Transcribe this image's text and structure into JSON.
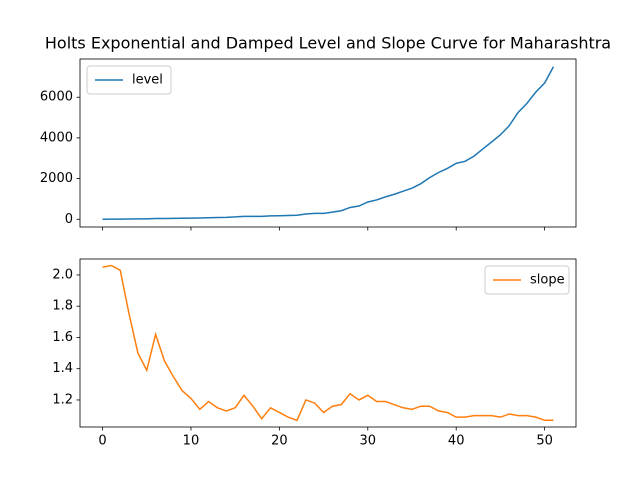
{
  "chart_data": [
    {
      "type": "line",
      "title": "Holts Exponential and Damped Level and Slope Curve for Maharashtra",
      "x": [
        0,
        1,
        2,
        3,
        4,
        5,
        6,
        7,
        8,
        9,
        10,
        11,
        12,
        13,
        14,
        15,
        16,
        17,
        18,
        19,
        20,
        21,
        22,
        23,
        24,
        25,
        26,
        27,
        28,
        29,
        30,
        31,
        32,
        33,
        34,
        35,
        36,
        37,
        38,
        39,
        40,
        41,
        42,
        43,
        44,
        45,
        46,
        47,
        48,
        49,
        50,
        51
      ],
      "series": [
        {
          "name": "level",
          "color": "#1f77b4",
          "values": [
            0,
            5,
            10,
            15,
            18,
            22,
            35,
            40,
            45,
            50,
            55,
            62,
            75,
            85,
            95,
            115,
            145,
            145,
            140,
            165,
            175,
            185,
            200,
            260,
            290,
            290,
            350,
            420,
            580,
            650,
            850,
            950,
            1100,
            1230,
            1380,
            1530,
            1750,
            2050,
            2300,
            2500,
            2750,
            2850,
            3100,
            3450,
            3800,
            4150,
            4600,
            5250,
            5700,
            6250,
            6700,
            7500
          ]
        }
      ],
      "xlim": [
        -2.55,
        53.55
      ],
      "ylim": [
        -380,
        7880
      ],
      "yticks": [
        0,
        2000,
        4000,
        6000
      ],
      "legend": "upper left"
    },
    {
      "type": "line",
      "x": [
        0,
        1,
        2,
        3,
        4,
        5,
        6,
        7,
        8,
        9,
        10,
        11,
        12,
        13,
        14,
        15,
        16,
        17,
        18,
        19,
        20,
        21,
        22,
        23,
        24,
        25,
        26,
        27,
        28,
        29,
        30,
        31,
        32,
        33,
        34,
        35,
        36,
        37,
        38,
        39,
        40,
        41,
        42,
        43,
        44,
        45,
        46,
        47,
        48,
        49,
        50,
        51
      ],
      "series": [
        {
          "name": "slope",
          "color": "#ff7f0e",
          "values": [
            2.05,
            2.06,
            2.03,
            1.75,
            1.5,
            1.39,
            1.62,
            1.45,
            1.35,
            1.26,
            1.21,
            1.14,
            1.19,
            1.15,
            1.13,
            1.15,
            1.23,
            1.16,
            1.08,
            1.15,
            1.12,
            1.09,
            1.07,
            1.2,
            1.18,
            1.12,
            1.16,
            1.17,
            1.24,
            1.2,
            1.23,
            1.19,
            1.19,
            1.17,
            1.15,
            1.14,
            1.16,
            1.16,
            1.13,
            1.12,
            1.09,
            1.09,
            1.1,
            1.1,
            1.1,
            1.09,
            1.11,
            1.1,
            1.1,
            1.09,
            1.07,
            1.07
          ]
        }
      ],
      "xlim": [
        -2.55,
        53.55
      ],
      "ylim": [
        1.027,
        2.102
      ],
      "xticks": [
        0,
        10,
        20,
        30,
        40,
        50
      ],
      "yticks": [
        1.2,
        1.4,
        1.6,
        1.8,
        {
          "value": 2,
          "label": "2.0"
        }
      ],
      "legend": "upper right"
    }
  ]
}
